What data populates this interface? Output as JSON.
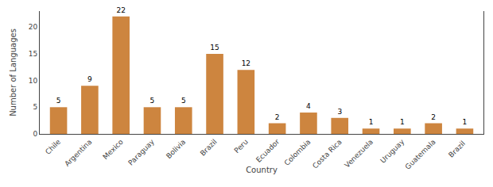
{
  "chart_data": {
    "type": "bar",
    "xlabel": "Country",
    "ylabel": "Number of Languages",
    "categories": [
      "Chile",
      "Argentina",
      "Mexico",
      "Paraguay",
      "Bolivia",
      "Brazil",
      "Peru",
      "Ecuador",
      "Colombia",
      "Costa Rica",
      "Venezuela",
      "Uruguay",
      "Guatemala",
      "Brazil "
    ],
    "values": [
      5,
      9,
      22,
      5,
      5,
      15,
      12,
      2,
      4,
      3,
      1,
      1,
      2,
      1
    ],
    "color": "#CD853F",
    "ylim": [
      0,
      23
    ],
    "yticks": [
      0,
      5,
      10,
      15,
      20
    ],
    "grid": false,
    "data_labels": true
  }
}
